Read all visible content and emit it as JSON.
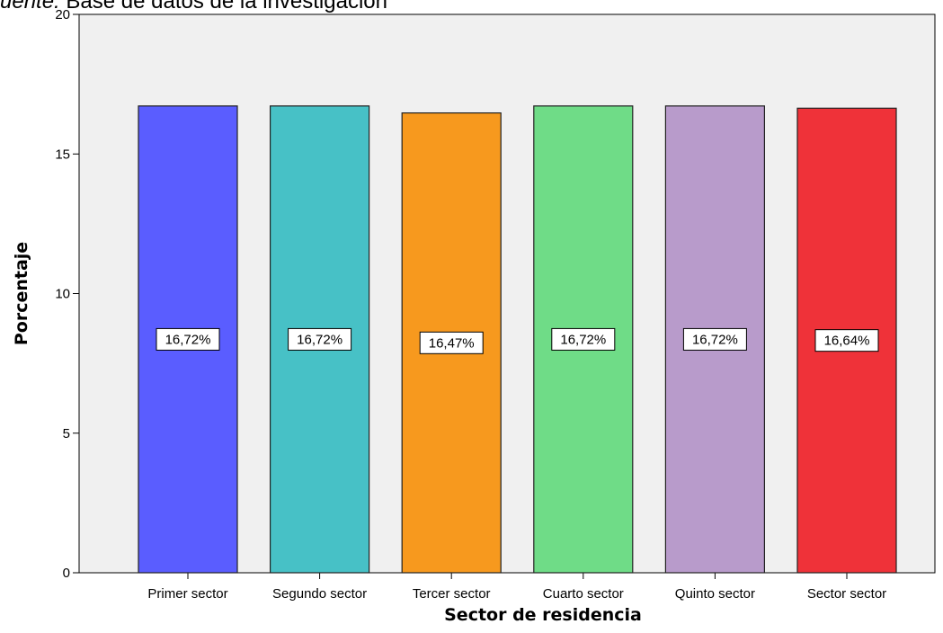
{
  "caption": {
    "source_label": "uente:",
    "source_text": " Base de datos de la investigación"
  },
  "chart_data": {
    "type": "bar",
    "categories": [
      "Primer sector",
      "Segundo sector",
      "Tercer sector",
      "Cuarto sector",
      "Quinto sector",
      "Sector sector"
    ],
    "values": [
      16.72,
      16.72,
      16.47,
      16.72,
      16.72,
      16.64
    ],
    "data_labels": [
      "16,72%",
      "16,72%",
      "16,47%",
      "16,72%",
      "16,72%",
      "16,64%"
    ],
    "colors": [
      "#5a5dff",
      "#47c1c6",
      "#f7991e",
      "#6fdc87",
      "#b89bcb",
      "#ef3239"
    ],
    "xlabel": "Sector de residencia",
    "ylabel": "Porcentaje",
    "ylim": [
      0,
      20
    ],
    "yticks": [
      0,
      5,
      10,
      15,
      20
    ],
    "plot_background": "#f0f0f0",
    "grid": false,
    "legend": "none"
  }
}
